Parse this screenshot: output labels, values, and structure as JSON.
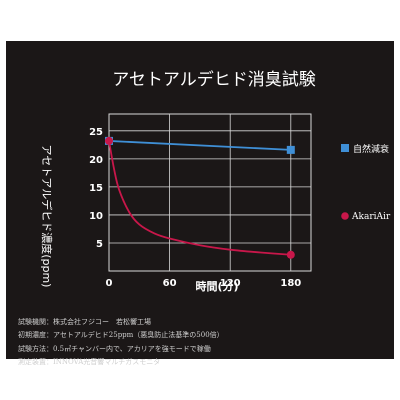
{
  "chart_data": {
    "type": "line",
    "title": "アセトアルデヒド消臭試験",
    "xlabel": "時間(分)",
    "ylabel": "アセトアルデヒド濃度(ppm)",
    "x_ticks": [
      "0",
      "60",
      "120",
      "180"
    ],
    "y_ticks": [
      "5",
      "10",
      "15",
      "20",
      "25"
    ],
    "xlim": [
      0,
      200
    ],
    "ylim": [
      0,
      28
    ],
    "grid": true,
    "legend_position": "right",
    "series": [
      {
        "name": "自然減衰",
        "color": "#3f8fd6",
        "marker": "square",
        "x": [
          0,
          180
        ],
        "y": [
          23.2,
          21.6
        ]
      },
      {
        "name": "AkariAir",
        "color": "#c8174a",
        "marker": "circle",
        "x": [
          0,
          180
        ],
        "y": [
          23.2,
          2.9
        ],
        "curve": [
          [
            0,
            23.2
          ],
          [
            5,
            18.2
          ],
          [
            10,
            14.5
          ],
          [
            20,
            10.5
          ],
          [
            30,
            8.3
          ],
          [
            45,
            6.7
          ],
          [
            60,
            5.8
          ],
          [
            90,
            4.6
          ],
          [
            120,
            3.8
          ],
          [
            150,
            3.3
          ],
          [
            180,
            2.9
          ]
        ]
      }
    ]
  },
  "notes": [
    "試験機関：株式会社フジコー　若松響工場",
    "初期濃度：アセトアルデヒド25ppm（悪臭防止法基準の500倍）",
    "試験方法：0.5㎥チャンバー内で、アカリアを強モードで稼働",
    "測定装置：INNOVA光音響マルチガスモニタ"
  ]
}
